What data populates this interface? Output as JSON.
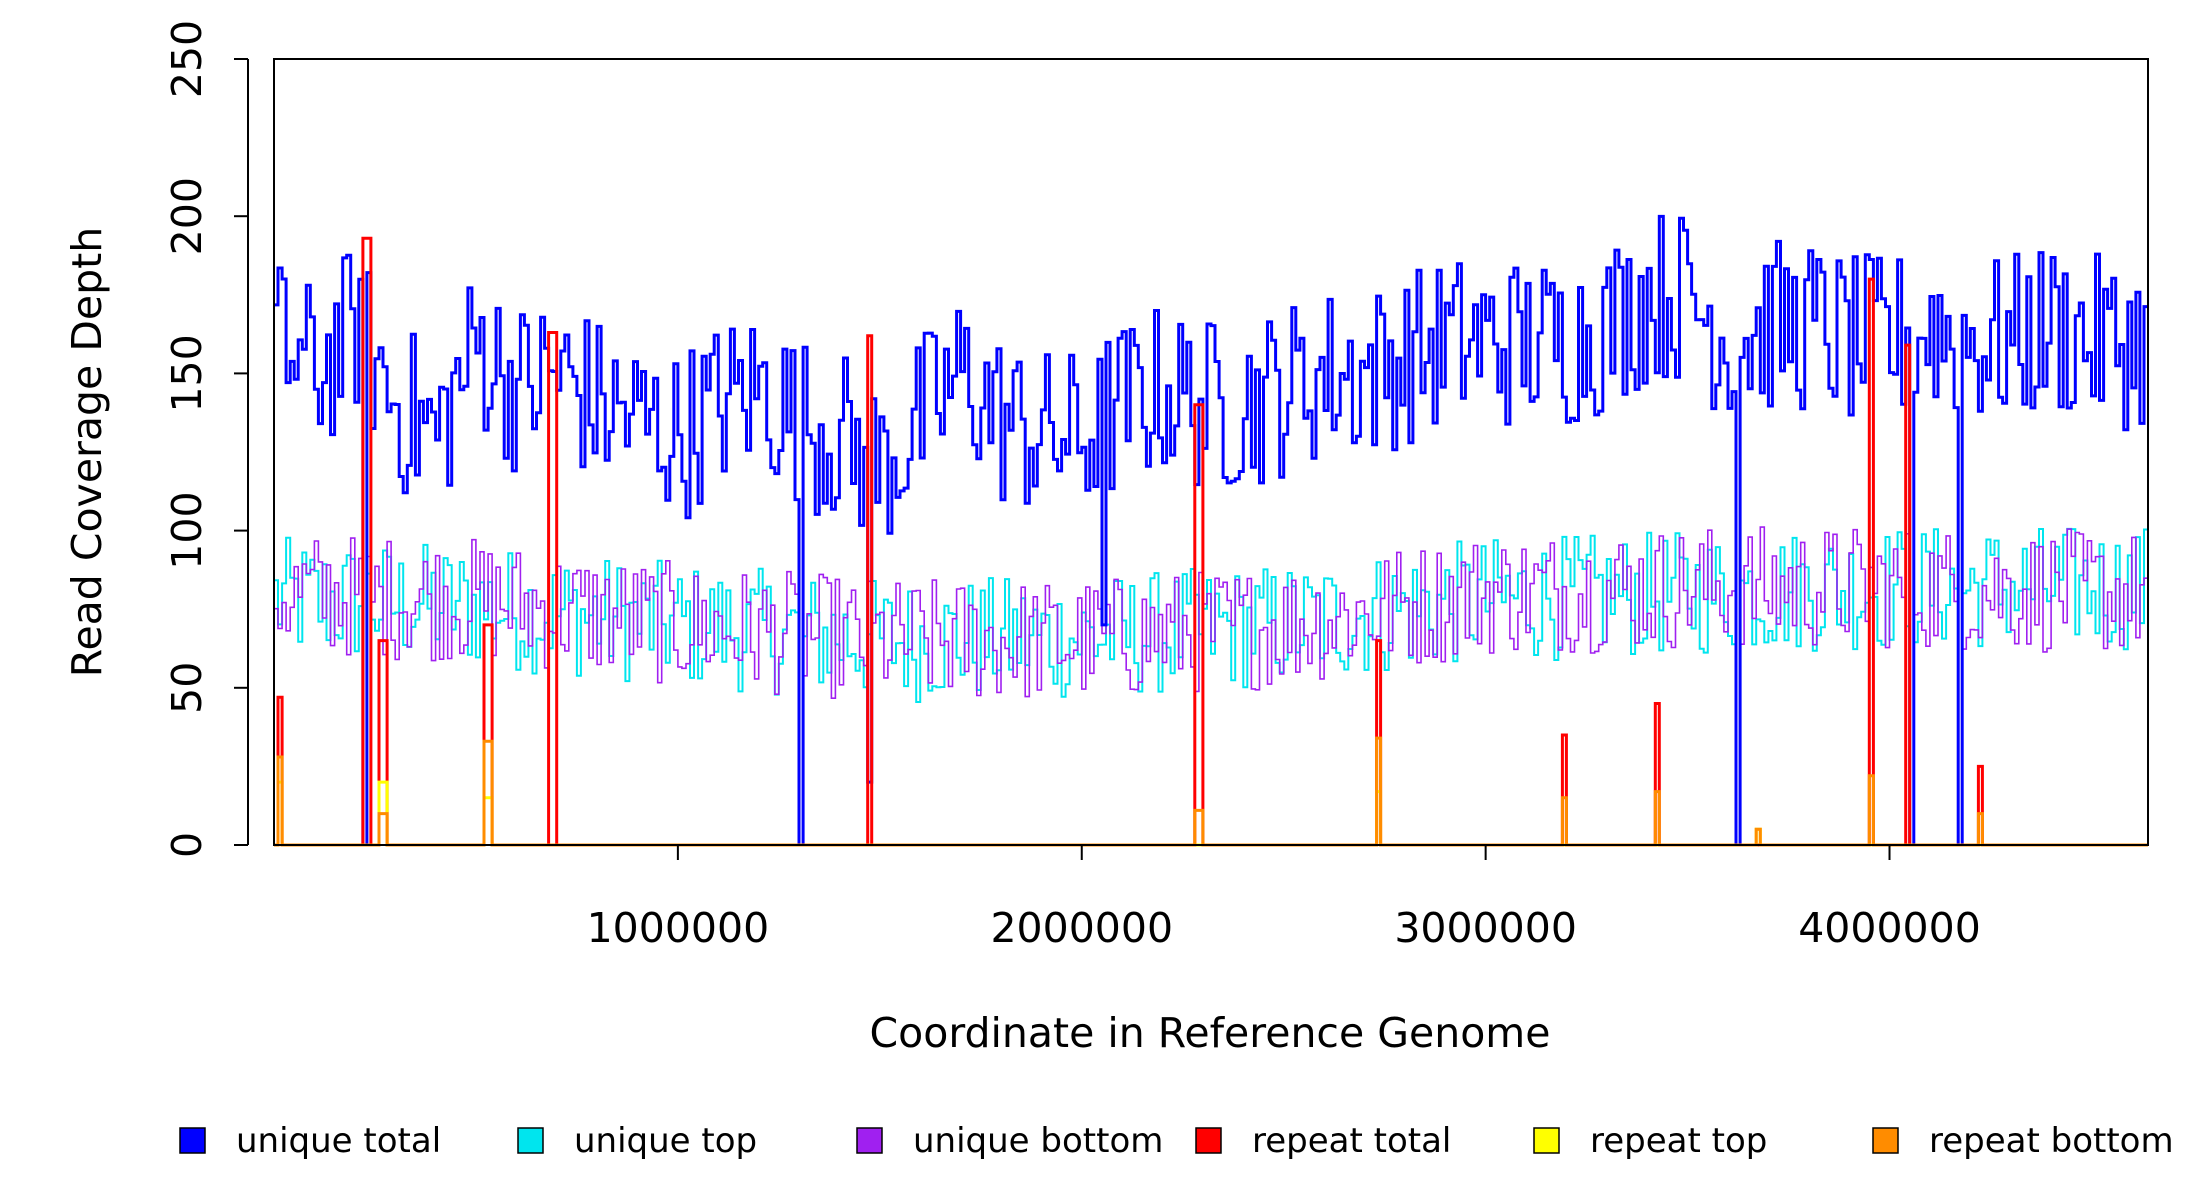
{
  "chart_data": {
    "type": "line",
    "xlabel": "Coordinate in Reference Genome",
    "ylabel": "Read Coverage Depth",
    "xlim": [
      0,
      4640000
    ],
    "ylim": [
      0,
      250
    ],
    "x_ticks": [
      1000000,
      2000000,
      3000000,
      4000000
    ],
    "x_tick_labels": [
      "1000000",
      "2000000",
      "3000000",
      "4000000"
    ],
    "y_ticks": [
      0,
      50,
      100,
      150,
      200,
      250
    ],
    "y_tick_labels": [
      "0",
      "50",
      "100",
      "150",
      "200",
      "250"
    ],
    "grid": false,
    "legend_position": "bottom",
    "bin_width": 10000,
    "series": [
      {
        "name": "unique total",
        "color": "#0000ff",
        "samples": [
          [
            0,
            160
          ],
          [
            100000,
            150
          ],
          [
            200000,
            165
          ],
          [
            300000,
            140
          ],
          [
            400000,
            130
          ],
          [
            500000,
            160
          ],
          [
            600000,
            145
          ],
          [
            700000,
            150
          ],
          [
            800000,
            140
          ],
          [
            900000,
            135
          ],
          [
            1000000,
            130
          ],
          [
            1100000,
            140
          ],
          [
            1200000,
            145
          ],
          [
            1300000,
            135
          ],
          [
            1400000,
            130
          ],
          [
            1500000,
            120
          ],
          [
            1600000,
            135
          ],
          [
            1700000,
            150
          ],
          [
            1800000,
            135
          ],
          [
            1900000,
            130
          ],
          [
            2000000,
            130
          ],
          [
            2100000,
            140
          ],
          [
            2200000,
            145
          ],
          [
            2300000,
            140
          ],
          [
            2400000,
            140
          ],
          [
            2500000,
            145
          ],
          [
            2600000,
            150
          ],
          [
            2700000,
            150
          ],
          [
            2800000,
            155
          ],
          [
            2900000,
            160
          ],
          [
            3000000,
            160
          ],
          [
            3100000,
            160
          ],
          [
            3200000,
            160
          ],
          [
            3300000,
            165
          ],
          [
            3400000,
            175
          ],
          [
            3500000,
            175
          ],
          [
            3600000,
            160
          ],
          [
            3700000,
            165
          ],
          [
            3800000,
            165
          ],
          [
            3900000,
            160
          ],
          [
            4000000,
            160
          ],
          [
            4100000,
            165
          ],
          [
            4200000,
            160
          ],
          [
            4300000,
            160
          ],
          [
            4400000,
            165
          ],
          [
            4500000,
            160
          ],
          [
            4640000,
            160
          ]
        ],
        "dips": [
          [
            220000,
            0
          ],
          [
            1300000,
            0
          ],
          [
            1470000,
            20
          ],
          [
            2050000,
            70
          ],
          [
            3620000,
            0
          ],
          [
            4050000,
            0
          ],
          [
            4170000,
            0
          ]
        ]
      },
      {
        "name": "unique top",
        "color": "#00e5ee",
        "samples": [
          [
            0,
            78
          ],
          [
            500000,
            76
          ],
          [
            1000000,
            70
          ],
          [
            1500000,
            65
          ],
          [
            2000000,
            66
          ],
          [
            2500000,
            70
          ],
          [
            3000000,
            78
          ],
          [
            3500000,
            80
          ],
          [
            4000000,
            82
          ],
          [
            4640000,
            82
          ]
        ],
        "dips": [
          [
            220000,
            0
          ],
          [
            1300000,
            0
          ],
          [
            3620000,
            0
          ],
          [
            4050000,
            0
          ],
          [
            4170000,
            0
          ]
        ]
      },
      {
        "name": "unique bottom",
        "color": "#a020f0",
        "samples": [
          [
            0,
            80
          ],
          [
            500000,
            78
          ],
          [
            1000000,
            70
          ],
          [
            1500000,
            65
          ],
          [
            2000000,
            65
          ],
          [
            2500000,
            70
          ],
          [
            3000000,
            80
          ],
          [
            3500000,
            82
          ],
          [
            4000000,
            82
          ],
          [
            4640000,
            80
          ]
        ],
        "dips": [
          [
            220000,
            0
          ],
          [
            1300000,
            0
          ],
          [
            3620000,
            0
          ],
          [
            4050000,
            0
          ],
          [
            4170000,
            0
          ]
        ]
      },
      {
        "name": "repeat total",
        "color": "#ff0000",
        "peaks": [
          [
            10000,
            47
          ],
          [
            225000,
            193
          ],
          [
            265000,
            65
          ],
          [
            525000,
            70
          ],
          [
            685000,
            163
          ],
          [
            1470000,
            162
          ],
          [
            2285000,
            140
          ],
          [
            2730000,
            65
          ],
          [
            3190000,
            35
          ],
          [
            3420000,
            45
          ],
          [
            3950000,
            180
          ],
          [
            4040000,
            159
          ],
          [
            4220000,
            25
          ]
        ]
      },
      {
        "name": "repeat top",
        "color": "#ffff00",
        "peaks": [
          [
            10000,
            20
          ],
          [
            265000,
            20
          ],
          [
            525000,
            15
          ],
          [
            2730000,
            17
          ],
          [
            3670000,
            5
          ]
        ]
      },
      {
        "name": "repeat bottom",
        "color": "#ff8c00",
        "peaks": [
          [
            10000,
            28
          ],
          [
            265000,
            10
          ],
          [
            525000,
            33
          ],
          [
            2285000,
            11
          ],
          [
            2730000,
            34
          ],
          [
            3190000,
            15
          ],
          [
            3420000,
            17
          ],
          [
            3670000,
            5
          ],
          [
            3950000,
            22
          ],
          [
            4220000,
            10
          ]
        ]
      }
    ]
  }
}
